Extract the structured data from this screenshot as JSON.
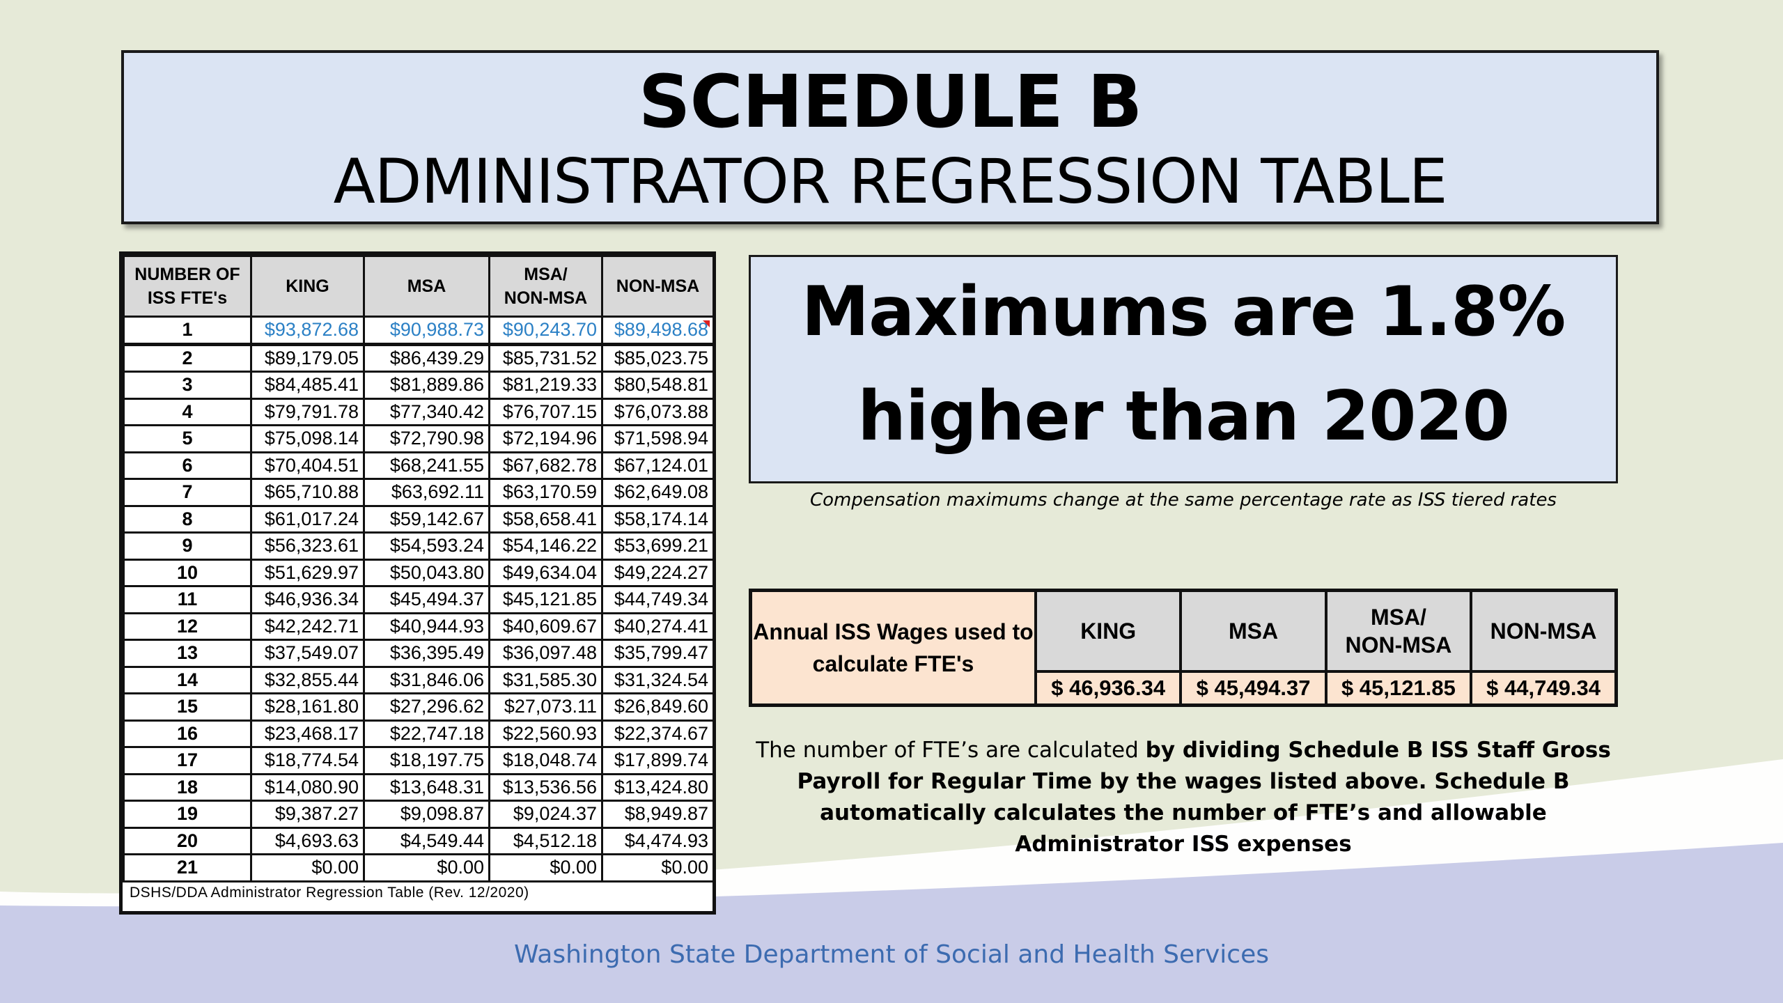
{
  "title": {
    "main": "SCHEDULE B",
    "sub": "ADMINISTRATOR REGRESSION TABLE"
  },
  "regression_table": {
    "headers": [
      "NUMBER OF\nISS FTE's",
      "KING",
      "MSA",
      "MSA/\nNON-MSA",
      "NON-MSA"
    ],
    "rows": [
      [
        "1",
        "$93,872.68",
        "$90,988.73",
        "$90,243.70",
        "$89,498.68"
      ],
      [
        "2",
        "$89,179.05",
        "$86,439.29",
        "$85,731.52",
        "$85,023.75"
      ],
      [
        "3",
        "$84,485.41",
        "$81,889.86",
        "$81,219.33",
        "$80,548.81"
      ],
      [
        "4",
        "$79,791.78",
        "$77,340.42",
        "$76,707.15",
        "$76,073.88"
      ],
      [
        "5",
        "$75,098.14",
        "$72,790.98",
        "$72,194.96",
        "$71,598.94"
      ],
      [
        "6",
        "$70,404.51",
        "$68,241.55",
        "$67,682.78",
        "$67,124.01"
      ],
      [
        "7",
        "$65,710.88",
        "$63,692.11",
        "$63,170.59",
        "$62,649.08"
      ],
      [
        "8",
        "$61,017.24",
        "$59,142.67",
        "$58,658.41",
        "$58,174.14"
      ],
      [
        "9",
        "$56,323.61",
        "$54,593.24",
        "$54,146.22",
        "$53,699.21"
      ],
      [
        "10",
        "$51,629.97",
        "$50,043.80",
        "$49,634.04",
        "$49,224.27"
      ],
      [
        "11",
        "$46,936.34",
        "$45,494.37",
        "$45,121.85",
        "$44,749.34"
      ],
      [
        "12",
        "$42,242.71",
        "$40,944.93",
        "$40,609.67",
        "$40,274.41"
      ],
      [
        "13",
        "$37,549.07",
        "$36,395.49",
        "$36,097.48",
        "$35,799.47"
      ],
      [
        "14",
        "$32,855.44",
        "$31,846.06",
        "$31,585.30",
        "$31,324.54"
      ],
      [
        "15",
        "$28,161.80",
        "$27,296.62",
        "$27,073.11",
        "$26,849.60"
      ],
      [
        "16",
        "$23,468.17",
        "$22,747.18",
        "$22,560.93",
        "$22,374.67"
      ],
      [
        "17",
        "$18,774.54",
        "$18,197.75",
        "$18,048.74",
        "$17,899.74"
      ],
      [
        "18",
        "$14,080.90",
        "$13,648.31",
        "$13,536.56",
        "$13,424.80"
      ],
      [
        "19",
        "$9,387.27",
        "$9,098.87",
        "$9,024.37",
        "$8,949.87"
      ],
      [
        "20",
        "$4,693.63",
        "$4,549.44",
        "$4,512.18",
        "$4,474.93"
      ],
      [
        "21",
        "$0.00",
        "$0.00",
        "$0.00",
        "$0.00"
      ]
    ],
    "footnote": "DSHS/DDA Administrator Regression Table (Rev. 12/2020)"
  },
  "maximums": {
    "line1": "Maximums are 1.8%",
    "line2": "higher than 2020",
    "caption": "Compensation maximums change at the same percentage rate as ISS tiered rates"
  },
  "wages_table": {
    "row_label": "Annual ISS Wages used to calculate FTE's",
    "headers": [
      "KING",
      "MSA",
      "MSA/\nNON-MSA",
      "NON-MSA"
    ],
    "values": [
      "$ 46,936.34",
      "$ 45,494.37",
      "$ 45,121.85",
      "$ 44,749.34"
    ]
  },
  "paragraph": {
    "plain": "The number of FTE’s are calculated ",
    "bold": "by dividing Schedule B ISS Staff Gross Payroll for Regular Time by the wages listed above. Schedule B automatically calculates the number of FTE’s and allowable Administrator ISS expenses"
  },
  "footer": "Washington State Department of Social and Health Services",
  "colors": {
    "background": "#e6ead8",
    "title_box": "#dbe4f3",
    "header_gray": "#d9d9d9",
    "peach": "#fce4d0",
    "blue_text": "#2b80c5",
    "footer_band": "#c9cce8",
    "footer_text": "#3c6bb0"
  }
}
